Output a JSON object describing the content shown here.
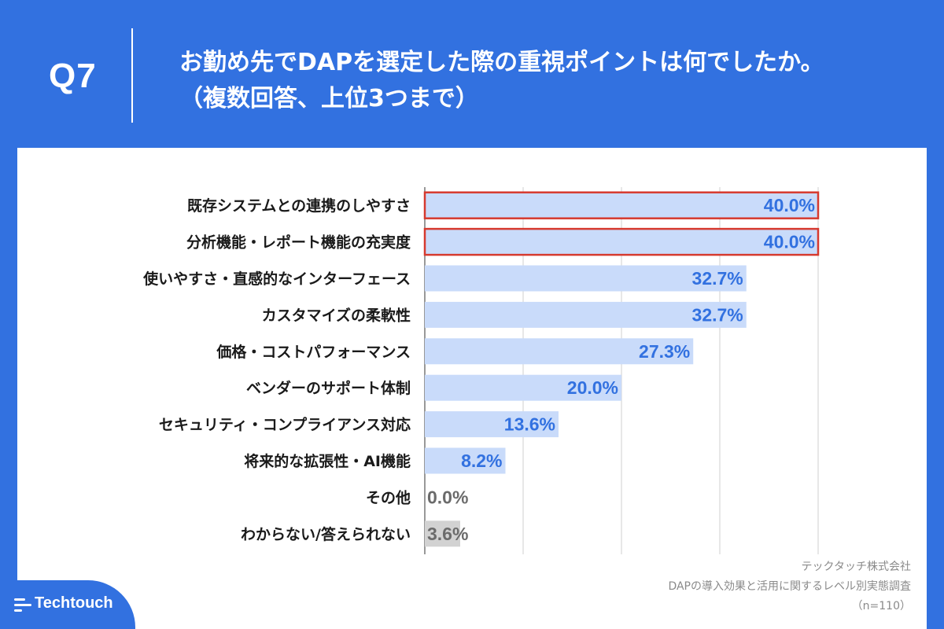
{
  "header": {
    "question_no": "Q7",
    "title_line1": "お勤め先でDAPを選定した際の重視ポイントは何でしたか。",
    "title_line2": "（複数回答、上位3つまで）"
  },
  "colors": {
    "background": "#3271e0",
    "bar": "#c9dbfa",
    "bar_muted": "#d2d2d2",
    "value_text": "#3271e0",
    "value_text_muted": "#6b6b6b",
    "highlight_border": "#d63a2f",
    "grid": "#cfcfcf"
  },
  "chart_data": {
    "type": "bar",
    "orientation": "horizontal",
    "categories": [
      "既存システムとの連携のしやすさ",
      "分析機能・レポート機能の充実度",
      "使いやすさ・直感的なインターフェース",
      "カスタマイズの柔軟性",
      "価格・コストパフォーマンス",
      "ベンダーのサポート体制",
      "セキュリティ・コンプライアンス対応",
      "将来的な拡張性・AI機能",
      "その他",
      "わからない/答えられない"
    ],
    "values": [
      40.0,
      40.0,
      32.7,
      32.7,
      27.3,
      20.0,
      13.6,
      8.2,
      0.0,
      3.6
    ],
    "value_labels": [
      "40.0%",
      "40.0%",
      "32.7%",
      "32.7%",
      "27.3%",
      "20.0%",
      "13.6%",
      "8.2%",
      "0.0%",
      "3.6%"
    ],
    "highlighted": [
      0,
      1
    ],
    "muted": [
      8,
      9
    ],
    "xlim": [
      0,
      40
    ],
    "grid": true,
    "gridline_interval": 10,
    "unit": "%"
  },
  "source": {
    "company": "テックタッチ株式会社",
    "survey": "DAPの導入効果と活用に関するレベル別実態調査",
    "sample": "（n=110）"
  },
  "brand": {
    "name": "Techtouch",
    "logo_icon": "lines-logo-icon"
  }
}
